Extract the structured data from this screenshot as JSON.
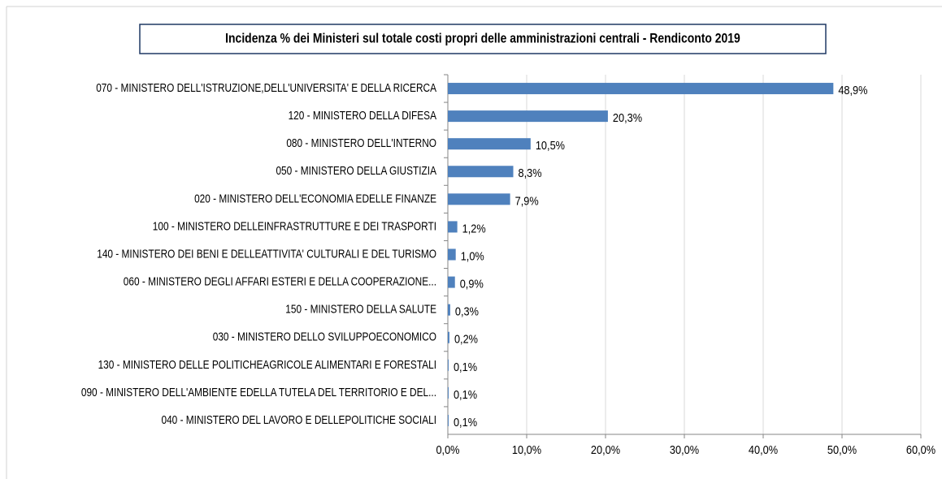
{
  "chart_data": {
    "type": "bar",
    "orientation": "horizontal",
    "title": "Incidenza % dei Ministeri sul totale costi propri delle amministrazioni centrali - Rendiconto 2019",
    "categories": [
      "070 - MINISTERO DELL'ISTRUZIONE,DELL'UNIVERSITA' E DELLA RICERCA",
      "120 - MINISTERO DELLA DIFESA",
      "080 - MINISTERO DELL'INTERNO",
      "050 - MINISTERO DELLA GIUSTIZIA",
      "020 - MINISTERO DELL'ECONOMIA EDELLE FINANZE",
      "100 - MINISTERO DELLEINFRASTRUTTURE E DEI TRASPORTI",
      "140 - MINISTERO DEI BENI E DELLEATTIVITA' CULTURALI E DEL TURISMO",
      "060 - MINISTERO DEGLI AFFARI ESTERI E DELLA COOPERAZIONE...",
      "150 - MINISTERO DELLA SALUTE",
      "030 - MINISTERO DELLO SVILUPPOECONOMICO",
      "130 - MINISTERO DELLE POLITICHEAGRICOLE ALIMENTARI E FORESTALI",
      "090 - MINISTERO DELL'AMBIENTE EDELLA TUTELA DEL TERRITORIO E DEL...",
      "040 - MINISTERO DEL LAVORO E DELLEPOLITICHE SOCIALI"
    ],
    "values": [
      48.9,
      20.3,
      10.5,
      8.3,
      7.9,
      1.2,
      1.0,
      0.9,
      0.3,
      0.2,
      0.1,
      0.1,
      0.1
    ],
    "value_labels": [
      "48,9%",
      "20,3%",
      "10,5%",
      "8,3%",
      "7,9%",
      "1,2%",
      "1,0%",
      "0,9%",
      "0,3%",
      "0,2%",
      "0,1%",
      "0,1%",
      "0,1%"
    ],
    "color": "#4f81bd",
    "xlim": [
      0,
      60
    ],
    "xticks": [
      {
        "value": 0,
        "label": "0,0%"
      },
      {
        "value": 10,
        "label": "10,0%"
      },
      {
        "value": 20,
        "label": "20,0%"
      },
      {
        "value": 30,
        "label": "30,0%"
      },
      {
        "value": 40,
        "label": "40,0%"
      },
      {
        "value": 50,
        "label": "50,0%"
      },
      {
        "value": 60,
        "label": "60,0%"
      }
    ],
    "grid": true
  }
}
